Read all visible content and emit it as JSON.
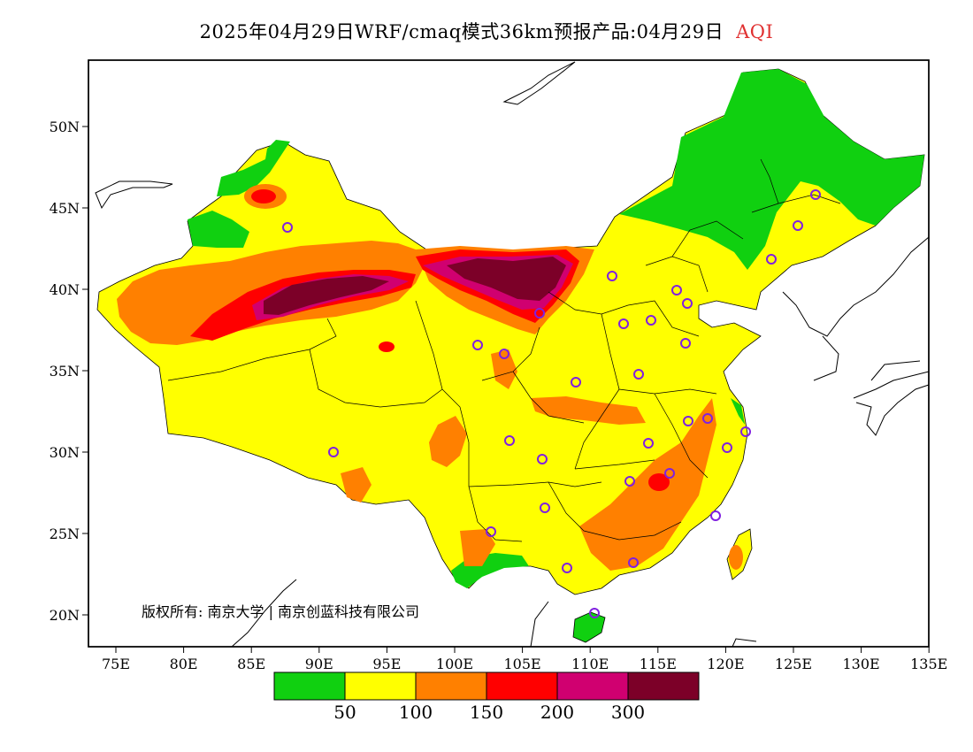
{
  "title": {
    "main": "2025年04月29日WRF/cmaq模式36km预报产品:04月29日",
    "product": "AQI"
  },
  "map": {
    "lat_ticks": [
      "50N",
      "45N",
      "40N",
      "35N",
      "30N",
      "25N",
      "20N"
    ],
    "lon_ticks": [
      "75E",
      "80E",
      "85E",
      "90E",
      "95E",
      "100E",
      "105E",
      "110E",
      "115E",
      "120E",
      "125E",
      "130E",
      "135E"
    ],
    "copyright": "版权所有: 南京大学 | 南京创蓝科技有限公司"
  },
  "legend": {
    "colors": [
      "#10d010",
      "#ffff00",
      "#ff8000",
      "#ff0000",
      "#d00070",
      "#7c0028"
    ],
    "labels": [
      "50",
      "100",
      "150",
      "200",
      "300"
    ]
  }
}
